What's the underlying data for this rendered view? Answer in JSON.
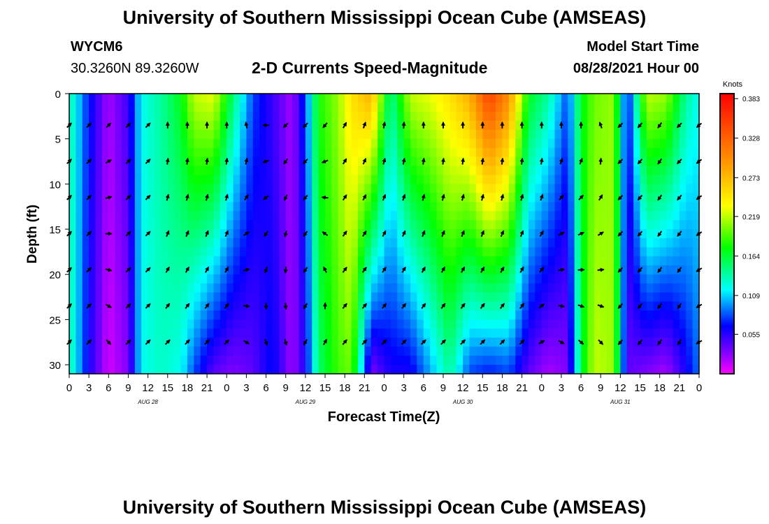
{
  "header": {
    "title": "University of Southern Mississippi Ocean Cube (AMSEAS)",
    "footer_title": "University of Southern Mississippi Ocean Cube (AMSEAS)",
    "station_id": "WYCM6",
    "coordinates": "30.3260N  89.3260W",
    "model_label": "Model Start Time",
    "model_time": "08/28/2021 Hour 00"
  },
  "chart_data": {
    "type": "heatmap",
    "title": "2-D Currents Speed-Magnitude",
    "xlabel": "Forecast Time(Z)",
    "ylabel": "Depth (ft)",
    "x_ticks": [
      "0",
      "3",
      "6",
      "9",
      "12",
      "15",
      "18",
      "21",
      "0",
      "3",
      "6",
      "9",
      "12",
      "15",
      "18",
      "21",
      "0",
      "3",
      "6",
      "9",
      "12",
      "15",
      "18",
      "21",
      "0",
      "3",
      "6",
      "9",
      "12",
      "15",
      "18",
      "21",
      "0"
    ],
    "x_range_hours": [
      0,
      96
    ],
    "day_labels": [
      {
        "text": "AUG 28",
        "hour": 12
      },
      {
        "text": "AUG 29",
        "hour": 36
      },
      {
        "text": "AUG 30",
        "hour": 60
      },
      {
        "text": "AUG 31",
        "hour": 84
      }
    ],
    "y_ticks": [
      "0",
      "5",
      "10",
      "15",
      "20",
      "25",
      "30"
    ],
    "y_range_ft": [
      0,
      31
    ],
    "colorbar": {
      "units": "Knots",
      "labels": [
        "0.383",
        "0.328",
        "0.273",
        "0.219",
        "0.164",
        "0.109",
        "0.055"
      ],
      "range": [
        0,
        0.39
      ]
    },
    "speed_profile": [
      {
        "hour": 0,
        "surface": 0.14,
        "bottom": 0.14
      },
      {
        "hour": 3,
        "surface": 0.07,
        "bottom": 0.06
      },
      {
        "hour": 6,
        "surface": 0.02,
        "bottom": 0.01
      },
      {
        "hour": 9,
        "surface": 0.05,
        "bottom": 0.03
      },
      {
        "hour": 11,
        "surface": 0.12,
        "bottom": 0.12
      },
      {
        "hour": 14,
        "surface": 0.14,
        "bottom": 0.13
      },
      {
        "hour": 17,
        "surface": 0.17,
        "bottom": 0.12
      },
      {
        "hour": 19,
        "surface": 0.22,
        "bottom": 0.08
      },
      {
        "hour": 22,
        "surface": 0.23,
        "bottom": 0.04
      },
      {
        "hour": 25,
        "surface": 0.15,
        "bottom": 0.03
      },
      {
        "hour": 28,
        "surface": 0.08,
        "bottom": 0.04
      },
      {
        "hour": 31,
        "surface": 0.05,
        "bottom": 0.07
      },
      {
        "hour": 34,
        "surface": 0.02,
        "bottom": 0.02
      },
      {
        "hour": 36,
        "surface": 0.08,
        "bottom": 0.06
      },
      {
        "hour": 38,
        "surface": 0.18,
        "bottom": 0.15
      },
      {
        "hour": 41,
        "surface": 0.21,
        "bottom": 0.19
      },
      {
        "hour": 43,
        "surface": 0.25,
        "bottom": 0.2
      },
      {
        "hour": 46,
        "surface": 0.28,
        "bottom": 0.03
      },
      {
        "hour": 49,
        "surface": 0.14,
        "bottom": 0.06
      },
      {
        "hour": 52,
        "surface": 0.22,
        "bottom": 0.06
      },
      {
        "hour": 55,
        "surface": 0.23,
        "bottom": 0.1
      },
      {
        "hour": 58,
        "surface": 0.25,
        "bottom": 0.14
      },
      {
        "hour": 61,
        "surface": 0.28,
        "bottom": 0.08
      },
      {
        "hour": 64,
        "surface": 0.35,
        "bottom": 0.07
      },
      {
        "hour": 67,
        "surface": 0.3,
        "bottom": 0.08
      },
      {
        "hour": 70,
        "surface": 0.17,
        "bottom": 0.04
      },
      {
        "hour": 73,
        "surface": 0.14,
        "bottom": 0.02
      },
      {
        "hour": 76,
        "surface": 0.08,
        "bottom": 0.03
      },
      {
        "hour": 78,
        "surface": 0.17,
        "bottom": 0.16
      },
      {
        "hour": 80,
        "surface": 0.2,
        "bottom": 0.22
      },
      {
        "hour": 83,
        "surface": 0.21,
        "bottom": 0.21
      },
      {
        "hour": 85,
        "surface": 0.06,
        "bottom": 0.04
      },
      {
        "hour": 88,
        "surface": 0.22,
        "bottom": 0.03
      },
      {
        "hour": 91,
        "surface": 0.21,
        "bottom": 0.02
      },
      {
        "hour": 94,
        "surface": 0.14,
        "bottom": 0.06
      },
      {
        "hour": 96,
        "surface": 0.12,
        "bottom": 0.09
      }
    ],
    "arrow_depths_ft": [
      3.5,
      7.5,
      11.5,
      15.5,
      19.5,
      23.5,
      27.5
    ],
    "arrow_hours": [
      0,
      3,
      6,
      9,
      12,
      15,
      18,
      21,
      24,
      27,
      30,
      33,
      36,
      39,
      42,
      45,
      48,
      51,
      54,
      57,
      60,
      63,
      66,
      69,
      72,
      75,
      78,
      81,
      84,
      87,
      90,
      93,
      96
    ],
    "arrow_direction_deg_surface": [
      45,
      45,
      45,
      45,
      45,
      0,
      0,
      0,
      0,
      -10,
      -90,
      -135,
      -135,
      -140,
      30,
      20,
      10,
      5,
      0,
      0,
      0,
      0,
      0,
      0,
      0,
      0,
      0,
      -20,
      -135,
      -140,
      -145,
      -135,
      -130
    ],
    "arrow_direction_deg_bottom": [
      45,
      45,
      135,
      45,
      45,
      45,
      45,
      45,
      45,
      120,
      160,
      165,
      -150,
      30,
      40,
      45,
      45,
      45,
      45,
      45,
      45,
      45,
      45,
      45,
      60,
      120,
      130,
      135,
      -140,
      -140,
      -145,
      -150,
      -120
    ]
  }
}
